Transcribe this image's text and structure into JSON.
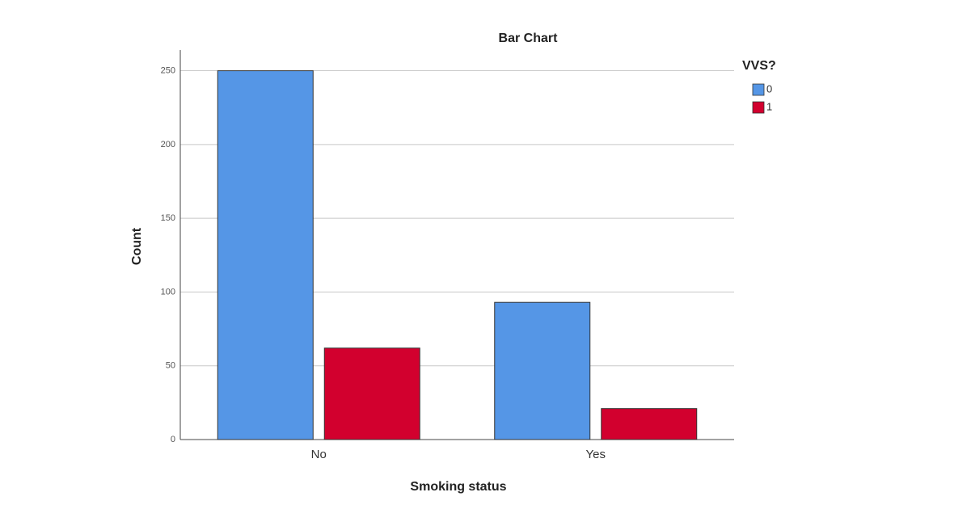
{
  "chart_data": {
    "type": "bar",
    "title": "Bar Chart",
    "x_label": "Smoking status",
    "y_label": "Count",
    "categories": [
      "No",
      "Yes"
    ],
    "legend_title": "VVS?",
    "legend": "right",
    "series": [
      {
        "name": "0",
        "color": "#5596e6",
        "values": [
          250,
          93
        ]
      },
      {
        "name": "1",
        "color": "#d2002e",
        "values": [
          62,
          21
        ]
      }
    ],
    "ylim": [
      0,
      264
    ],
    "yticks": [
      0,
      50,
      100,
      150,
      200,
      250
    ],
    "grid": true
  }
}
